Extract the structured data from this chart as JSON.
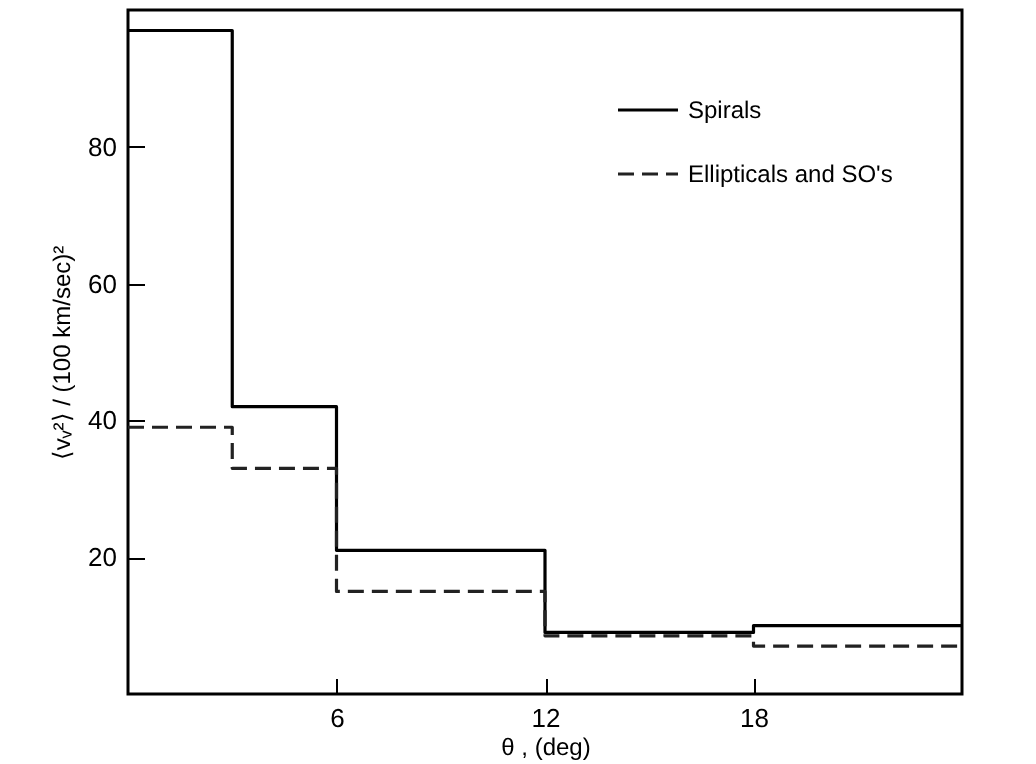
{
  "chart_data": {
    "type": "histogram",
    "xlabel": "θ , (deg)",
    "ylabel": "⟨vᵥ²⟩ / (100 km/sec)²",
    "bins": [
      0,
      3,
      6,
      12,
      18,
      24
    ],
    "series": [
      {
        "name": "Spirals",
        "color": "#000000",
        "line_style": "solid",
        "values": [
          97,
          42,
          21,
          9,
          10
        ]
      },
      {
        "name": "Ellipticals and SO's",
        "color": "#222222",
        "line_style": "dashed",
        "values": [
          39,
          33,
          15,
          8.5,
          7
        ]
      }
    ],
    "xlim": [
      0,
      24
    ],
    "xticks": [
      6,
      12,
      18
    ],
    "ylim": [
      0,
      100
    ],
    "yticks": [
      20,
      40,
      60,
      80
    ],
    "grid": false,
    "legend": "top right"
  }
}
